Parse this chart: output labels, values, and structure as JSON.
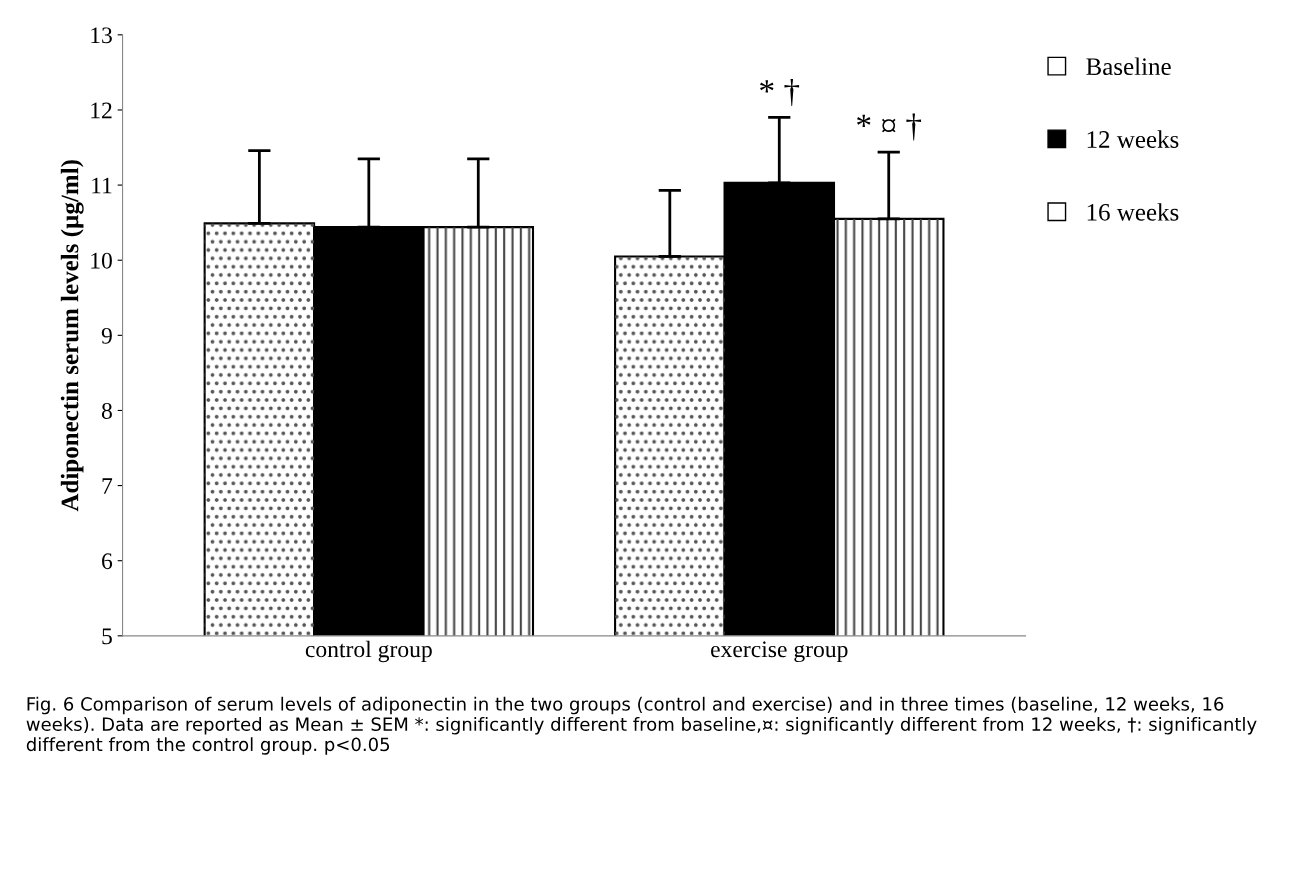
{
  "chart_data": {
    "type": "bar",
    "ylabel": "Adiponectin serum levels (µg/ml)",
    "categories": [
      "control group",
      "exercise group"
    ],
    "series": [
      {
        "name": "Baseline",
        "color": "#ffffff",
        "values": [
          10.49,
          10.05
        ],
        "errors": [
          [
            10.49,
            11.46
          ],
          [
            10.05,
            10.93
          ]
        ]
      },
      {
        "name": "12 weeks",
        "color": "#000000",
        "values": [
          10.44,
          11.03
        ],
        "errors": [
          [
            10.44,
            11.35
          ],
          [
            11.03,
            11.9
          ]
        ]
      },
      {
        "name": "16 weeks",
        "color": "#ffffff",
        "values": [
          10.44,
          10.55
        ],
        "errors": [
          [
            10.44,
            11.35
          ],
          [
            10.55,
            11.44
          ]
        ]
      }
    ],
    "ylim": [
      5,
      13
    ],
    "yticks": [
      5,
      6,
      7,
      8,
      9,
      10,
      11,
      12,
      13
    ],
    "grid": false,
    "legend": "top right",
    "annotations": [
      {
        "text": "* †",
        "x": "exercise group",
        "y": 11.9
      },
      {
        "text": "* ¤ †",
        "x": "exercise group",
        "y": 11.44
      },
      "Fig. 6 Comparison of serum levels of adiponectin in the two groups (control and exercise) and in three times (baseline, 12 weeks, 16 weeks). Data are reported as Mean ± SEM *: significantly different from baseline,¤: significantly different from 12 weeks, †: significantly different from the control group. p<0.05"
    ]
  }
}
